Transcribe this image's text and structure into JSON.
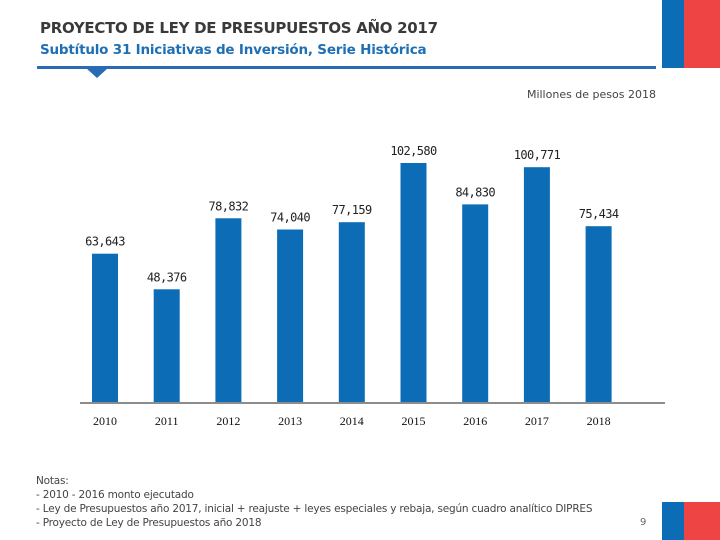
{
  "header": {
    "title": "PROYECTO DE LEY DE PRESUPUESTOS AÑO 2017",
    "subtitle": "Subtítulo 31 Iniciativas de Inversión, Serie Histórica"
  },
  "units_label": "Millones de pesos 2018",
  "colors": {
    "bar": "#0d6cb6",
    "axis": "#8c8c8c",
    "flag_blue": "#0d6cb6",
    "flag_red": "#ef4444",
    "subtitle": "#1f6fb4"
  },
  "chart_data": {
    "type": "bar",
    "title": "Subtítulo 31 Iniciativas de Inversión, Serie Histórica",
    "xlabel": "",
    "ylabel": "Millones de pesos 2018",
    "categories": [
      "2010",
      "2011",
      "2012",
      "2013",
      "2014",
      "2015",
      "2016",
      "2017",
      "2018"
    ],
    "values": [
      63643,
      48376,
      78832,
      74040,
      77159,
      102580,
      84830,
      100771,
      75434
    ],
    "data_labels": [
      "63,643",
      "48,376",
      "78,832",
      "74,040",
      "77,159",
      "102,580",
      "84,830",
      "100,771",
      "75,434"
    ],
    "ylim": [
      0,
      102580
    ],
    "grid": false,
    "legend": "none"
  },
  "notes": {
    "heading": "Notas:",
    "lines": [
      "- 2010 - 2016 monto ejecutado",
      "- Ley de Presupuestos año 2017, inicial + reajuste + leyes especiales y rebaja, según cuadro analítico DIPRES",
      "- Proyecto de Ley de Presupuestos año 2018"
    ]
  },
  "page_number": "9"
}
